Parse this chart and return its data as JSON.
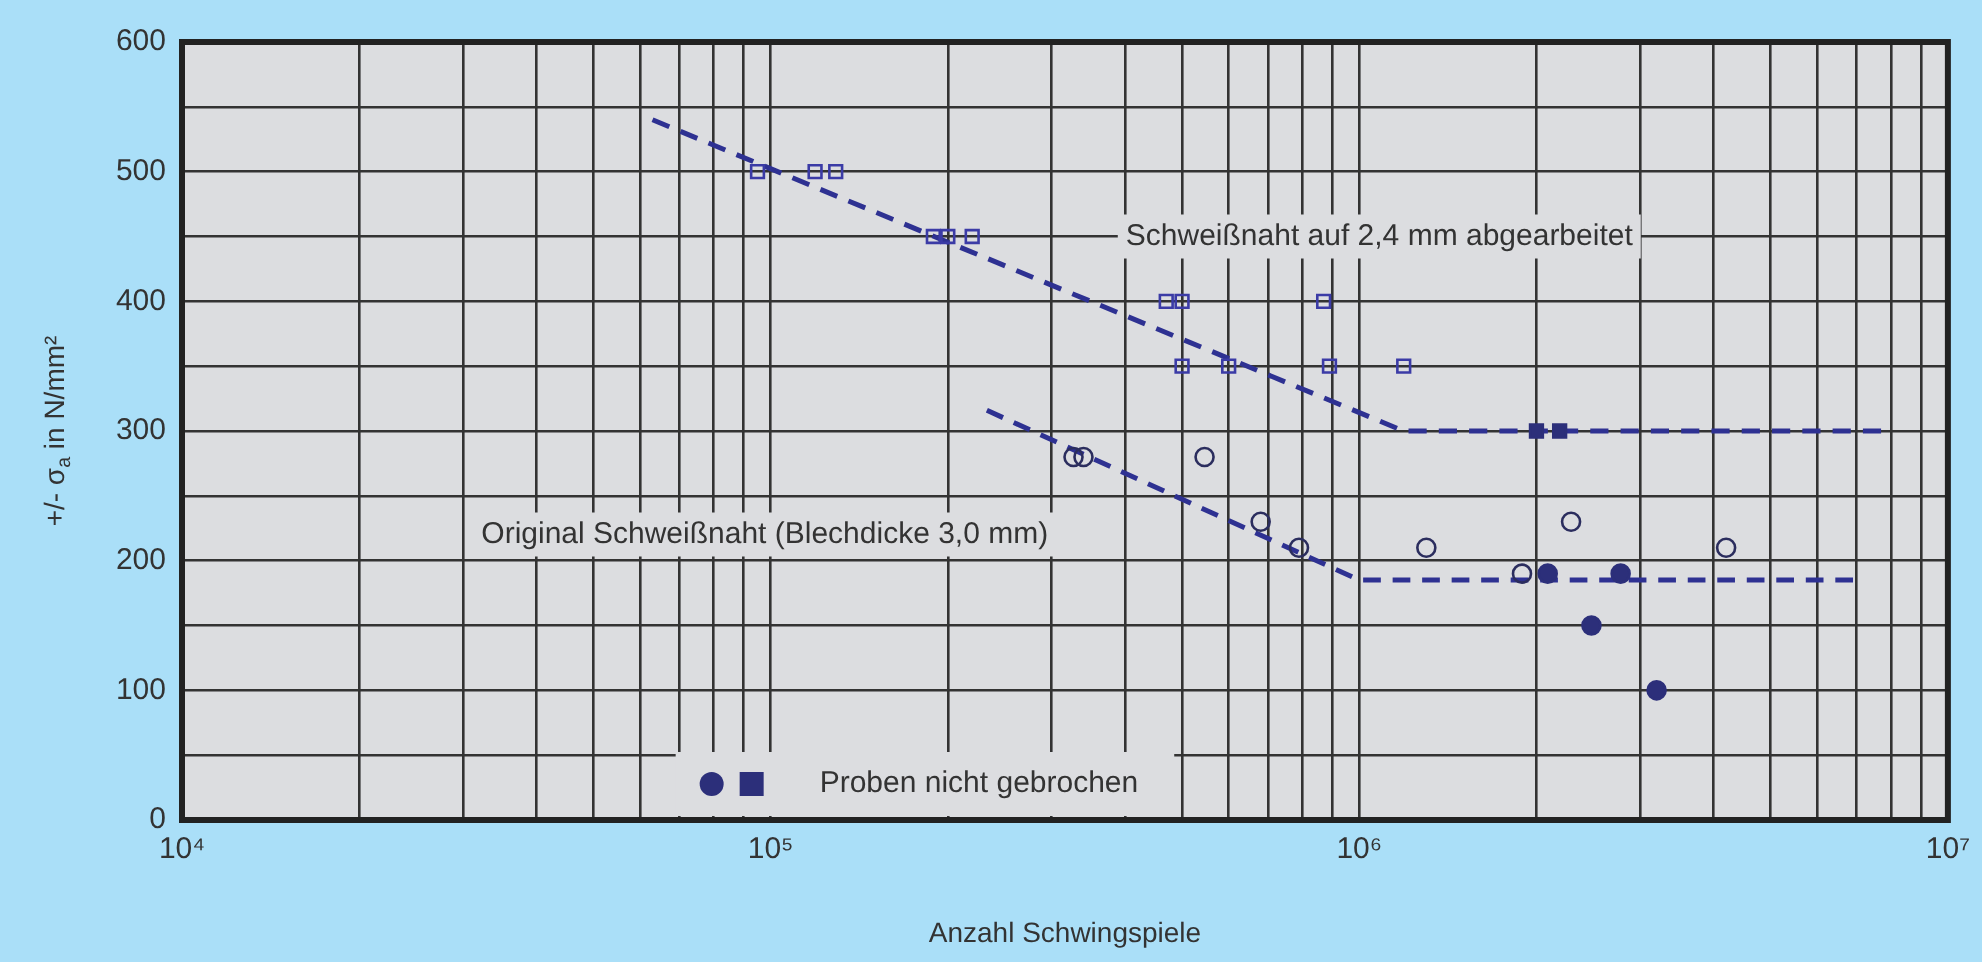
{
  "chart_data": {
    "type": "scatter",
    "xlabel": "Anzahl Schwingspiele",
    "ylabel": "+/- σ$_{a}$ in N/mm²",
    "log": "x",
    "xlim": [
      10000,
      10000000
    ],
    "xticks": [
      {
        "value": 10000,
        "label": "10⁴"
      },
      {
        "value": 20000,
        "label": null
      },
      {
        "value": 30000,
        "label": null
      },
      {
        "value": 40000,
        "label": null
      },
      {
        "value": 50000,
        "label": null
      },
      {
        "value": 60000,
        "label": null
      },
      {
        "value": 70000,
        "label": null
      },
      {
        "value": 80000,
        "label": null
      },
      {
        "value": 90000,
        "label": null
      },
      {
        "value": 100000,
        "label": "10⁵"
      },
      {
        "value": 200000,
        "label": null
      },
      {
        "value": 300000,
        "label": null
      },
      {
        "value": 400000,
        "label": null
      },
      {
        "value": 500000,
        "label": null
      },
      {
        "value": 600000,
        "label": null
      },
      {
        "value": 700000,
        "label": null
      },
      {
        "value": 800000,
        "label": null
      },
      {
        "value": 900000,
        "label": null
      },
      {
        "value": 1000000,
        "label": "10⁶"
      },
      {
        "value": 2000000,
        "label": null
      },
      {
        "value": 3000000,
        "label": null
      },
      {
        "value": 4000000,
        "label": null
      },
      {
        "value": 5000000,
        "label": null
      },
      {
        "value": 6000000,
        "label": null
      },
      {
        "value": 7000000,
        "label": null
      },
      {
        "value": 8000000,
        "label": null
      },
      {
        "value": 9000000,
        "label": null
      },
      {
        "value": 10000000,
        "label": "10⁷"
      }
    ],
    "ylim": [
      0,
      600
    ],
    "yticks": [
      0,
      {
        "value": 50,
        "label": null
      },
      100,
      {
        "value": 150,
        "label": null
      },
      200,
      {
        "value": 250,
        "label": null
      },
      300,
      {
        "value": 350,
        "label": null
      },
      400,
      {
        "value": 450,
        "label": null
      },
      500,
      {
        "value": 550,
        "label": null
      },
      600
    ],
    "grid": true,
    "legend": "bottom",
    "series": [
      {
        "type": "scatter",
        "marker": "square",
        "color": "#3b3ba6",
        "x": [
          95000,
          119000,
          129000,
          189000,
          200000,
          220000,
          470000,
          500000,
          870000,
          500000,
          600000,
          890000,
          1190000
        ],
        "values": [
          500,
          500,
          500,
          450,
          450,
          450,
          400,
          400,
          400,
          350,
          350,
          350,
          350
        ]
      },
      {
        "type": "scatter",
        "marker": "circle",
        "color": "#2b2d5e",
        "x": [
          327000,
          340000,
          546000,
          680000,
          2290000,
          790000,
          1300000,
          4200000,
          1890000
        ],
        "values": [
          280,
          280,
          280,
          230,
          230,
          210,
          210,
          210,
          190
        ]
      },
      {
        "type": "scatter",
        "marker": "circle",
        "name": "Proben nicht gebrochen",
        "color": "#2c2f7a",
        "x": [
          2090000,
          2780000,
          2480000,
          3200000
        ],
        "values": [
          190,
          190,
          150,
          100
        ]
      },
      {
        "type": "scatter",
        "marker": "square",
        "color": "#2c2f7a",
        "x": [
          2000000,
          2190000
        ],
        "values": [
          300,
          300
        ]
      },
      {
        "type": "line",
        "marker": "none",
        "line_style": "dashed",
        "color": "#2e3192",
        "x": [
          63000,
          1190000,
          7700000
        ],
        "values": [
          540,
          300,
          300
        ]
      },
      {
        "type": "line",
        "marker": "none",
        "line_style": "dashed",
        "color": "#2e3192",
        "x": [
          233000,
          1000000,
          6900000
        ],
        "values": [
          316,
          185,
          185
        ]
      }
    ],
    "annotations": [
      "Schweißnaht auf 2,4 mm abgearbeitet",
      "Original Schweißnaht (Blechdicke 3,0 mm)"
    ]
  }
}
